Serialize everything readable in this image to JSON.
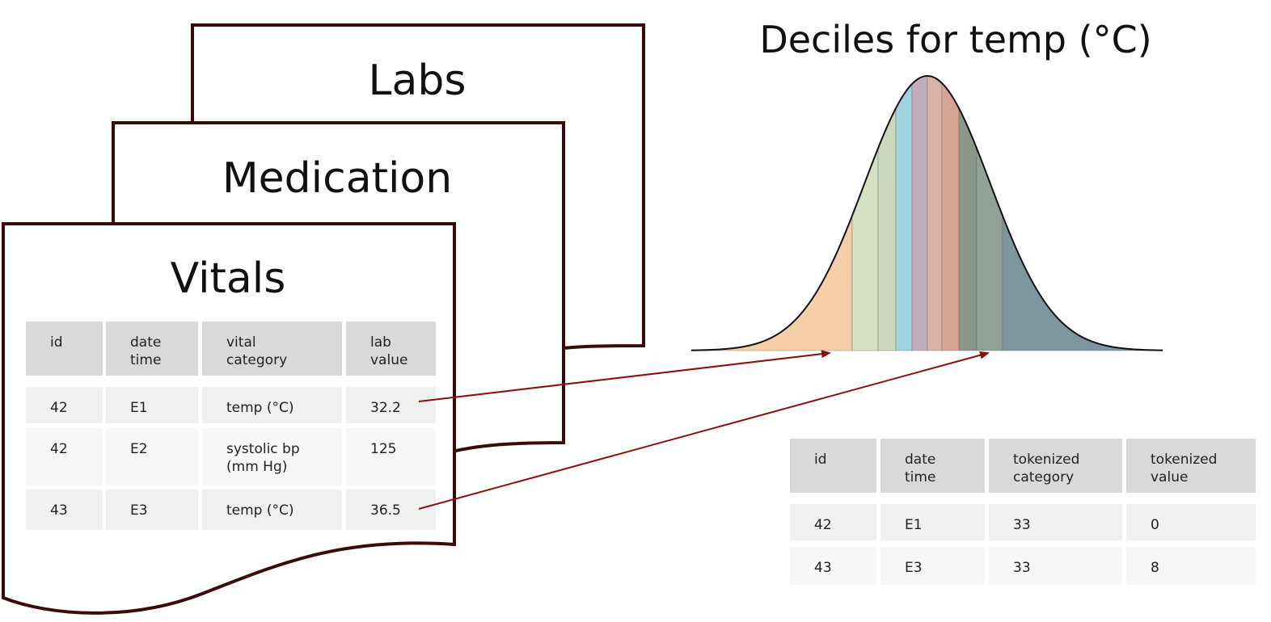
{
  "documents": {
    "labs": {
      "title": "Labs"
    },
    "medication": {
      "title": "Medication"
    },
    "vitals": {
      "title": "Vitals",
      "headers": [
        [
          "id"
        ],
        [
          "date",
          "time"
        ],
        [
          "vital",
          "category"
        ],
        [
          "lab",
          "value"
        ]
      ],
      "rows": [
        [
          [
            "42"
          ],
          [
            "E1"
          ],
          [
            "temp (°C)"
          ],
          [
            "32.2"
          ]
        ],
        [
          [
            "42"
          ],
          [
            "E2"
          ],
          [
            "systolic bp",
            "(mm Hg)"
          ],
          [
            "125"
          ]
        ],
        [
          [
            "43"
          ],
          [
            "E3"
          ],
          [
            "temp (°C)"
          ],
          [
            "36.5"
          ]
        ]
      ]
    }
  },
  "chart": {
    "title": "Deciles for temp (°C)",
    "decile_colors": [
      "#f5cfa6",
      "#d5e1c0",
      "#cbd8bd",
      "#9fd4dc",
      "#c4adbb",
      "#d8b4a8",
      "#d9a394",
      "#8a978a",
      "#92a196",
      "#7e96a0"
    ],
    "curve_color": "#111111"
  },
  "tokenized_table": {
    "headers": [
      [
        "id"
      ],
      [
        "date",
        "time"
      ],
      [
        "tokenized",
        "category"
      ],
      [
        "tokenized",
        "value"
      ]
    ],
    "rows": [
      [
        [
          "42"
        ],
        [
          "E1"
        ],
        [
          "33"
        ],
        [
          "0"
        ]
      ],
      [
        [
          "43"
        ],
        [
          "E3"
        ],
        [
          "33"
        ],
        [
          "8"
        ]
      ]
    ]
  },
  "colors": {
    "doc_border": "#3a0b0b",
    "arrow": "#8b1010",
    "header_fill": "#d9d9d9",
    "row_fill_a": "#f0f0f0",
    "row_fill_b": "#f7f7f7"
  }
}
